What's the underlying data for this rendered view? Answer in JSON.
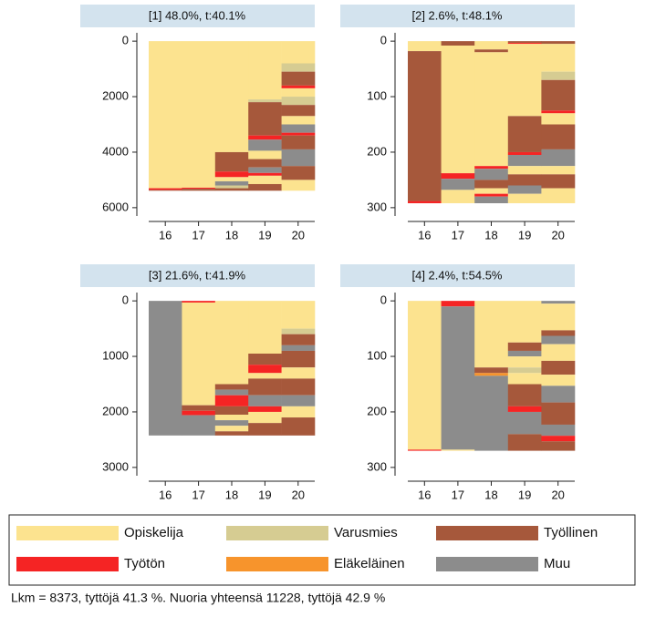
{
  "chart_data": [
    {
      "type": "sequence",
      "title": "[1] 48.0%, t:40.1%",
      "categories": [
        "16",
        "17",
        "18",
        "19",
        "20"
      ],
      "ylim": [
        -300,
        6300
      ],
      "reverse": true,
      "yticks": [
        0,
        2000,
        4000,
        6000
      ],
      "stacks": [
        [
          {
            "state": 0,
            "value": 5300
          },
          {
            "state": 3,
            "value": 60
          },
          {
            "state": 2,
            "value": 29
          }
        ],
        [
          {
            "state": 0,
            "value": 5280
          },
          {
            "state": 3,
            "value": 40
          },
          {
            "state": 2,
            "value": 69
          }
        ],
        [
          {
            "state": 0,
            "value": 4000
          },
          {
            "state": 2,
            "value": 700
          },
          {
            "state": 3,
            "value": 200
          },
          {
            "state": 0,
            "value": 150
          },
          {
            "state": 5,
            "value": 150
          },
          {
            "state": 1,
            "value": 100
          },
          {
            "state": 2,
            "value": 89
          }
        ],
        [
          {
            "state": 0,
            "value": 2100
          },
          {
            "state": 1,
            "value": 100
          },
          {
            "state": 2,
            "value": 1200
          },
          {
            "state": 3,
            "value": 150
          },
          {
            "state": 5,
            "value": 400
          },
          {
            "state": 0,
            "value": 300
          },
          {
            "state": 2,
            "value": 300
          },
          {
            "state": 5,
            "value": 200
          },
          {
            "state": 3,
            "value": 100
          },
          {
            "state": 0,
            "value": 300
          },
          {
            "state": 2,
            "value": 239
          }
        ],
        [
          {
            "state": 0,
            "value": 800
          },
          {
            "state": 1,
            "value": 300
          },
          {
            "state": 2,
            "value": 500
          },
          {
            "state": 3,
            "value": 100
          },
          {
            "state": 0,
            "value": 300
          },
          {
            "state": 1,
            "value": 300
          },
          {
            "state": 2,
            "value": 400
          },
          {
            "state": 0,
            "value": 300
          },
          {
            "state": 5,
            "value": 300
          },
          {
            "state": 3,
            "value": 100
          },
          {
            "state": 2,
            "value": 500
          },
          {
            "state": 5,
            "value": 600
          },
          {
            "state": 2,
            "value": 500
          },
          {
            "state": 0,
            "value": 389
          }
        ]
      ]
    },
    {
      "type": "sequence",
      "title": "[2] 2.6%, t:48.1%",
      "categories": [
        "16",
        "17",
        "18",
        "19",
        "20"
      ],
      "ylim": [
        -15,
        315
      ],
      "reverse": true,
      "yticks": [
        0,
        100,
        200,
        300
      ],
      "stacks": [
        [
          {
            "state": 0,
            "value": 18
          },
          {
            "state": 2,
            "value": 270
          },
          {
            "state": 3,
            "value": 4
          }
        ],
        [
          {
            "state": 2,
            "value": 8
          },
          {
            "state": 0,
            "value": 230
          },
          {
            "state": 3,
            "value": 10
          },
          {
            "state": 5,
            "value": 20
          },
          {
            "state": 0,
            "value": 24
          }
        ],
        [
          {
            "state": 0,
            "value": 15
          },
          {
            "state": 2,
            "value": 5
          },
          {
            "state": 0,
            "value": 205
          },
          {
            "state": 3,
            "value": 5
          },
          {
            "state": 5,
            "value": 20
          },
          {
            "state": 2,
            "value": 15
          },
          {
            "state": 0,
            "value": 10
          },
          {
            "state": 3,
            "value": 5
          },
          {
            "state": 5,
            "value": 12
          }
        ],
        [
          {
            "state": 2,
            "value": 3
          },
          {
            "state": 3,
            "value": 2
          },
          {
            "state": 0,
            "value": 130
          },
          {
            "state": 2,
            "value": 65
          },
          {
            "state": 3,
            "value": 5
          },
          {
            "state": 5,
            "value": 20
          },
          {
            "state": 0,
            "value": 15
          },
          {
            "state": 2,
            "value": 20
          },
          {
            "state": 5,
            "value": 15
          },
          {
            "state": 0,
            "value": 17
          }
        ],
        [
          {
            "state": 2,
            "value": 5
          },
          {
            "state": 0,
            "value": 50
          },
          {
            "state": 1,
            "value": 15
          },
          {
            "state": 2,
            "value": 55
          },
          {
            "state": 3,
            "value": 5
          },
          {
            "state": 0,
            "value": 20
          },
          {
            "state": 2,
            "value": 45
          },
          {
            "state": 5,
            "value": 30
          },
          {
            "state": 0,
            "value": 15
          },
          {
            "state": 2,
            "value": 25
          },
          {
            "state": 0,
            "value": 27
          }
        ]
      ]
    },
    {
      "type": "sequence",
      "title": "[3] 21.6%, t:41.9%",
      "categories": [
        "16",
        "17",
        "18",
        "19",
        "20"
      ],
      "ylim": [
        -150,
        3150
      ],
      "reverse": true,
      "yticks": [
        0,
        1000,
        2000,
        3000
      ],
      "stacks": [
        [
          {
            "state": 5,
            "value": 2425
          }
        ],
        [
          {
            "state": 3,
            "value": 30
          },
          {
            "state": 0,
            "value": 1850
          },
          {
            "state": 2,
            "value": 100
          },
          {
            "state": 3,
            "value": 80
          },
          {
            "state": 5,
            "value": 365
          }
        ],
        [
          {
            "state": 0,
            "value": 1500
          },
          {
            "state": 2,
            "value": 100
          },
          {
            "state": 5,
            "value": 100
          },
          {
            "state": 3,
            "value": 200
          },
          {
            "state": 2,
            "value": 150
          },
          {
            "state": 0,
            "value": 100
          },
          {
            "state": 5,
            "value": 100
          },
          {
            "state": 0,
            "value": 100
          },
          {
            "state": 2,
            "value": 75
          }
        ],
        [
          {
            "state": 0,
            "value": 950
          },
          {
            "state": 2,
            "value": 200
          },
          {
            "state": 3,
            "value": 150
          },
          {
            "state": 0,
            "value": 100
          },
          {
            "state": 2,
            "value": 300
          },
          {
            "state": 5,
            "value": 200
          },
          {
            "state": 3,
            "value": 100
          },
          {
            "state": 0,
            "value": 200
          },
          {
            "state": 2,
            "value": 225
          }
        ],
        [
          {
            "state": 0,
            "value": 500
          },
          {
            "state": 1,
            "value": 100
          },
          {
            "state": 2,
            "value": 200
          },
          {
            "state": 5,
            "value": 100
          },
          {
            "state": 2,
            "value": 300
          },
          {
            "state": 0,
            "value": 200
          },
          {
            "state": 2,
            "value": 300
          },
          {
            "state": 5,
            "value": 200
          },
          {
            "state": 0,
            "value": 200
          },
          {
            "state": 2,
            "value": 325
          }
        ]
      ]
    },
    {
      "type": "sequence",
      "title": "[4] 2.4%, t:54.5%",
      "categories": [
        "16",
        "17",
        "18",
        "19",
        "20"
      ],
      "ylim": [
        -15,
        315
      ],
      "reverse": true,
      "yticks": [
        0,
        100,
        200,
        300
      ],
      "stacks": [
        [
          {
            "state": 0,
            "value": 268
          },
          {
            "state": 3,
            "value": 2
          }
        ],
        [
          {
            "state": 3,
            "value": 10
          },
          {
            "state": 5,
            "value": 258
          },
          {
            "state": 0,
            "value": 2
          }
        ],
        [
          {
            "state": 0,
            "value": 120
          },
          {
            "state": 2,
            "value": 10
          },
          {
            "state": 4,
            "value": 5
          },
          {
            "state": 5,
            "value": 135
          }
        ],
        [
          {
            "state": 0,
            "value": 75
          },
          {
            "state": 2,
            "value": 15
          },
          {
            "state": 5,
            "value": 10
          },
          {
            "state": 0,
            "value": 20
          },
          {
            "state": 1,
            "value": 10
          },
          {
            "state": 0,
            "value": 20
          },
          {
            "state": 2,
            "value": 40
          },
          {
            "state": 3,
            "value": 10
          },
          {
            "state": 5,
            "value": 40
          },
          {
            "state": 2,
            "value": 30
          }
        ],
        [
          {
            "state": 5,
            "value": 5
          },
          {
            "state": 0,
            "value": 48
          },
          {
            "state": 2,
            "value": 10
          },
          {
            "state": 5,
            "value": 15
          },
          {
            "state": 0,
            "value": 30
          },
          {
            "state": 2,
            "value": 25
          },
          {
            "state": 0,
            "value": 20
          },
          {
            "state": 5,
            "value": 30
          },
          {
            "state": 2,
            "value": 40
          },
          {
            "state": 5,
            "value": 20
          },
          {
            "state": 3,
            "value": 10
          },
          {
            "state": 2,
            "value": 17
          }
        ]
      ]
    }
  ],
  "legend": [
    {
      "name": "Opiskelija",
      "color": "#fce38f"
    },
    {
      "name": "Varusmies",
      "color": "#d6cc92"
    },
    {
      "name": "Työllinen",
      "color": "#a6583b"
    },
    {
      "name": "Työtön",
      "color": "#f52424"
    },
    {
      "name": "Eläkeläinen",
      "color": "#f7942c"
    },
    {
      "name": "Muu",
      "color": "#8c8c8c"
    }
  ],
  "note": "Lkm = 8373, tyttöjä 41.3 %. Nuoria yhteensä 11228, tyttöjä 42.9 %"
}
